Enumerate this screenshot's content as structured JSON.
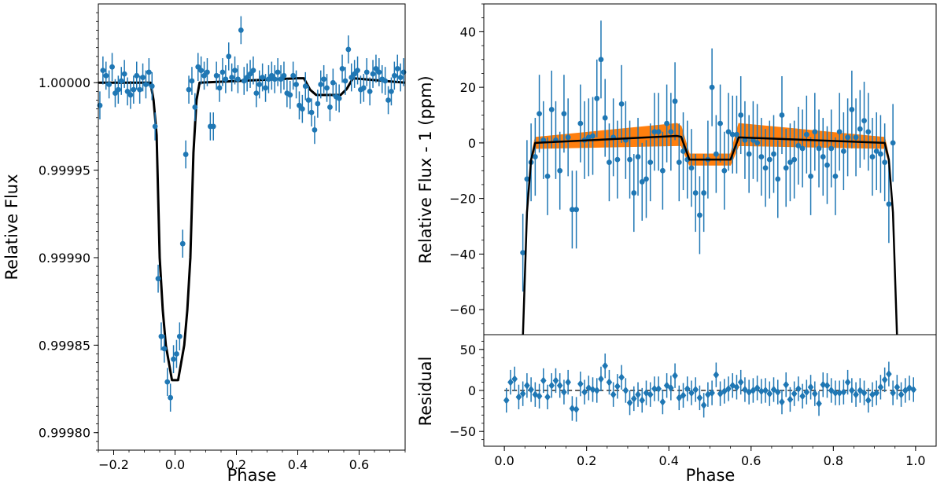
{
  "colors": {
    "points": "#1f77b4",
    "model": "#000000",
    "band": "#ff7f0e",
    "axes": "#000000"
  },
  "chart_data": [
    {
      "id": "left",
      "type": "scatter",
      "title": "",
      "xlabel": "Phase",
      "ylabel": "Relative Flux",
      "xlim": [
        -0.25,
        0.75
      ],
      "ylim": [
        0.99979,
        1.000045
      ],
      "xticks": [
        -0.2,
        0.0,
        0.2,
        0.4,
        0.6
      ],
      "xtick_labels": [
        "−0.2",
        "0.0",
        "0.2",
        "0.4",
        "0.6"
      ],
      "yticks": [
        0.9998,
        0.99985,
        0.9999,
        0.99995,
        1.0
      ],
      "ytick_labels": [
        "0.99980",
        "0.99985",
        "0.99990",
        "0.99995",
        "1.00000"
      ],
      "series": [
        {
          "name": "data",
          "kind": "errorbar",
          "x": [
            -0.245,
            -0.235,
            -0.225,
            -0.215,
            -0.205,
            -0.195,
            -0.185,
            -0.175,
            -0.165,
            -0.155,
            -0.145,
            -0.135,
            -0.125,
            -0.115,
            -0.105,
            -0.095,
            -0.085,
            -0.075,
            -0.065,
            -0.055,
            -0.045,
            -0.035,
            -0.025,
            -0.015,
            -0.005,
            0.005,
            0.015,
            0.025,
            0.035,
            0.045,
            0.055,
            0.065,
            0.075,
            0.085,
            0.095,
            0.105,
            0.115,
            0.125,
            0.135,
            0.145,
            0.155,
            0.165,
            0.175,
            0.185,
            0.195,
            0.205,
            0.215,
            0.225,
            0.235,
            0.245,
            0.255,
            0.265,
            0.275,
            0.285,
            0.295,
            0.305,
            0.315,
            0.325,
            0.335,
            0.345,
            0.355,
            0.365,
            0.375,
            0.385,
            0.395,
            0.405,
            0.415,
            0.425,
            0.435,
            0.445,
            0.455,
            0.465,
            0.475,
            0.485,
            0.495,
            0.505,
            0.515,
            0.525,
            0.535,
            0.545,
            0.555,
            0.565,
            0.575,
            0.585,
            0.595,
            0.605,
            0.615,
            0.625,
            0.635,
            0.645,
            0.655,
            0.665,
            0.675,
            0.685,
            0.695,
            0.705,
            0.715,
            0.725,
            0.735,
            0.745
          ],
          "y": [
            0.999987,
            1.000007,
            1.000004,
            0.999999,
            1.000009,
            0.999994,
            0.999996,
            1.000001,
            1.000005,
            0.999995,
            0.999993,
            0.999996,
            1.000004,
            0.999996,
            1.000003,
            0.999999,
            1.000006,
            0.999998,
            0.999975,
            0.999888,
            0.999855,
            0.999848,
            0.999829,
            0.99982,
            0.999842,
            0.999845,
            0.999855,
            0.999908,
            0.999959,
            0.999996,
            1.000001,
            0.999986,
            1.000009,
            1.000007,
            1.000004,
            1.000006,
            0.999975,
            0.999975,
            1.000004,
            0.999997,
            1.000006,
            1.000002,
            1.000015,
            1.000003,
            1.000007,
            1.000002,
            1.00003,
            1.000001,
            1.000003,
            1.000005,
            1.000007,
            0.999994,
            0.999999,
            1.000003,
            0.999997,
            1.000002,
            1.000004,
            1.000002,
            1.000006,
            1.000002,
            1.000004,
            0.999994,
            0.999993,
            1.000004,
            0.999999,
            0.999987,
            0.999985,
            0.999998,
            0.99999,
            0.999983,
            0.999973,
            0.999988,
            0.999999,
            1.000002,
            0.999997,
            0.999986,
            1.0,
            0.999992,
            0.999991,
            1.000008,
            1.000001,
            1.000019,
            1.000003,
            1.000005,
            1.000007,
            0.999996,
            0.999997,
            1.000006,
            0.999995,
            1.000005,
            1.000008,
            1.000006,
            1.000002,
            1.000001,
            0.99999,
            0.999995,
            1.000004,
            1.000008,
            1.000003,
            1.000006
          ],
          "yerr": 8e-06
        },
        {
          "name": "model",
          "kind": "line",
          "x": [
            -0.25,
            -0.08,
            -0.07,
            -0.06,
            -0.05,
            -0.04,
            -0.03,
            -0.02,
            -0.01,
            0.0,
            0.01,
            0.02,
            0.03,
            0.04,
            0.05,
            0.06,
            0.07,
            0.08,
            0.4,
            0.42,
            0.44,
            0.46,
            0.48,
            0.5,
            0.52,
            0.54,
            0.56,
            0.58,
            0.75
          ],
          "y": [
            1.0,
            1.0,
            0.99999,
            0.99997,
            0.9999,
            0.99987,
            0.99985,
            0.99984,
            0.99983,
            0.99983,
            0.99983,
            0.99984,
            0.99985,
            0.99987,
            0.9999,
            0.99996,
            0.99999,
            1.0,
            1.0000025,
            1.0000025,
            0.999996,
            0.999993,
            0.999993,
            0.999993,
            0.999993,
            0.999993,
            0.9999965,
            1.0000025,
            1.0
          ]
        }
      ]
    },
    {
      "id": "right_top",
      "type": "scatter",
      "title": "",
      "xlabel": "",
      "ylabel": "Relative Flux - 1 (ppm)",
      "xlim": [
        -0.05,
        1.05
      ],
      "ylim": [
        -69,
        50
      ],
      "yticks": [
        40,
        20,
        0,
        -20,
        -40,
        -60
      ],
      "ytick_labels": [
        "40",
        "20",
        "0",
        "−20",
        "−40",
        "−60"
      ],
      "series": [
        {
          "name": "data",
          "kind": "errorbar",
          "x": [
            0.045,
            0.055,
            0.065,
            0.075,
            0.085,
            0.095,
            0.105,
            0.115,
            0.125,
            0.135,
            0.145,
            0.155,
            0.165,
            0.175,
            0.185,
            0.195,
            0.205,
            0.215,
            0.225,
            0.235,
            0.245,
            0.255,
            0.265,
            0.275,
            0.285,
            0.295,
            0.305,
            0.315,
            0.325,
            0.335,
            0.345,
            0.355,
            0.365,
            0.375,
            0.385,
            0.395,
            0.405,
            0.415,
            0.425,
            0.435,
            0.445,
            0.455,
            0.465,
            0.475,
            0.485,
            0.495,
            0.505,
            0.515,
            0.525,
            0.535,
            0.545,
            0.555,
            0.565,
            0.575,
            0.585,
            0.595,
            0.605,
            0.615,
            0.625,
            0.635,
            0.645,
            0.655,
            0.665,
            0.675,
            0.685,
            0.695,
            0.705,
            0.715,
            0.725,
            0.735,
            0.745,
            0.755,
            0.765,
            0.775,
            0.785,
            0.795,
            0.805,
            0.815,
            0.825,
            0.835,
            0.845,
            0.855,
            0.865,
            0.875,
            0.885,
            0.895,
            0.905,
            0.915,
            0.925,
            0.935,
            0.945
          ],
          "y": [
            -39.5,
            -13,
            -7,
            -5,
            10.5,
            1,
            -12,
            12,
            1,
            -10,
            10.5,
            2,
            -24,
            -24,
            7,
            1,
            2,
            2.5,
            16,
            30,
            9,
            -7,
            2,
            -6,
            14,
            1,
            -6,
            -18,
            -5,
            -14,
            -13,
            -7,
            4,
            4,
            -10,
            7,
            4,
            15,
            -7,
            -3,
            -6,
            -9,
            -18,
            -26,
            -18,
            -6,
            20,
            -4,
            7,
            -10,
            4,
            3,
            3,
            10,
            1,
            -4,
            1,
            0,
            -5,
            -9,
            -6,
            -4,
            -13,
            10,
            -9,
            -7,
            -6,
            -1,
            -2,
            3,
            -12,
            4,
            -2,
            -5,
            -8,
            -2,
            -12,
            4,
            -3,
            2,
            12,
            2,
            5,
            8,
            4,
            -5,
            -3,
            -4,
            -7,
            -22,
            0
          ],
          "yerr": 14
        },
        {
          "name": "model",
          "kind": "line",
          "x": [
            0.045,
            0.055,
            0.065,
            0.075,
            0.42,
            0.43,
            0.45,
            0.55,
            0.57,
            0.925,
            0.935,
            0.945,
            0.955
          ],
          "y": [
            -70,
            -25,
            -6,
            0,
            2.5,
            2.2,
            -6,
            -6,
            2,
            0,
            -6,
            -25,
            -70
          ]
        },
        {
          "name": "uncertainty",
          "kind": "band",
          "x": [
            0.045,
            0.055,
            0.065,
            0.075,
            0.42,
            0.43,
            0.45,
            0.55,
            0.57,
            0.925,
            0.935,
            0.945,
            0.955
          ],
          "lower": [
            -70,
            -26,
            -7,
            -2,
            -1,
            -1,
            -8,
            -8,
            -1,
            -2,
            -7,
            -26,
            -70
          ],
          "upper": [
            -70,
            -24,
            -5,
            2,
            7,
            6,
            -4,
            -4,
            7,
            2,
            -5,
            -24,
            -70
          ]
        }
      ]
    },
    {
      "id": "right_bottom",
      "type": "scatter",
      "title": "",
      "xlabel": "Phase",
      "ylabel": "Residual",
      "xlim": [
        -0.05,
        1.05
      ],
      "ylim": [
        -68,
        68
      ],
      "xticks": [
        0.0,
        0.2,
        0.4,
        0.6,
        0.8,
        1.0
      ],
      "xtick_labels": [
        "0.0",
        "0.2",
        "0.4",
        "0.6",
        "0.8",
        "1.0"
      ],
      "yticks": [
        50,
        0,
        -50
      ],
      "ytick_labels": [
        "50",
        "0",
        "−50"
      ],
      "reference_line": 0,
      "series": [
        {
          "name": "residuals",
          "kind": "errorbar",
          "x": [
            0.005,
            0.015,
            0.025,
            0.035,
            0.045,
            0.055,
            0.065,
            0.075,
            0.085,
            0.095,
            0.105,
            0.115,
            0.125,
            0.135,
            0.145,
            0.155,
            0.165,
            0.175,
            0.185,
            0.195,
            0.205,
            0.215,
            0.225,
            0.235,
            0.245,
            0.255,
            0.265,
            0.275,
            0.285,
            0.295,
            0.305,
            0.315,
            0.325,
            0.335,
            0.345,
            0.355,
            0.365,
            0.375,
            0.385,
            0.395,
            0.405,
            0.415,
            0.425,
            0.435,
            0.445,
            0.455,
            0.465,
            0.475,
            0.485,
            0.495,
            0.505,
            0.515,
            0.525,
            0.535,
            0.545,
            0.555,
            0.565,
            0.575,
            0.585,
            0.595,
            0.605,
            0.615,
            0.625,
            0.635,
            0.645,
            0.655,
            0.665,
            0.675,
            0.685,
            0.695,
            0.705,
            0.715,
            0.725,
            0.735,
            0.745,
            0.755,
            0.765,
            0.775,
            0.785,
            0.795,
            0.805,
            0.815,
            0.825,
            0.835,
            0.845,
            0.855,
            0.865,
            0.875,
            0.885,
            0.895,
            0.905,
            0.915,
            0.925,
            0.935,
            0.945,
            0.955,
            0.965,
            0.975,
            0.985,
            0.995
          ],
          "y": [
            -12,
            10,
            14,
            -8,
            -4,
            6,
            1,
            -5,
            -7,
            12,
            -8,
            6,
            12,
            6,
            -2,
            10,
            -22,
            -23,
            8,
            -2,
            3,
            1,
            0,
            14,
            30,
            10,
            -5,
            5,
            16,
            0,
            -15,
            -10,
            -5,
            -12,
            -3,
            -5,
            2,
            2,
            -14,
            6,
            3,
            18,
            -9,
            -6,
            2,
            -3,
            1,
            -9,
            -18,
            -5,
            -3,
            19,
            -4,
            -1,
            2,
            6,
            4,
            10,
            1,
            -2,
            0,
            3,
            -1,
            0,
            -4,
            1,
            -2,
            -14,
            7,
            -11,
            -4,
            2,
            -7,
            -2,
            4,
            -4,
            -16,
            7,
            6,
            0,
            -3,
            -3,
            -2,
            10,
            0,
            -5,
            0,
            -3,
            -12,
            -5,
            -3,
            4,
            13,
            20,
            -3,
            4,
            -5,
            0,
            3,
            1
          ],
          "yerr": 15
        }
      ]
    }
  ]
}
